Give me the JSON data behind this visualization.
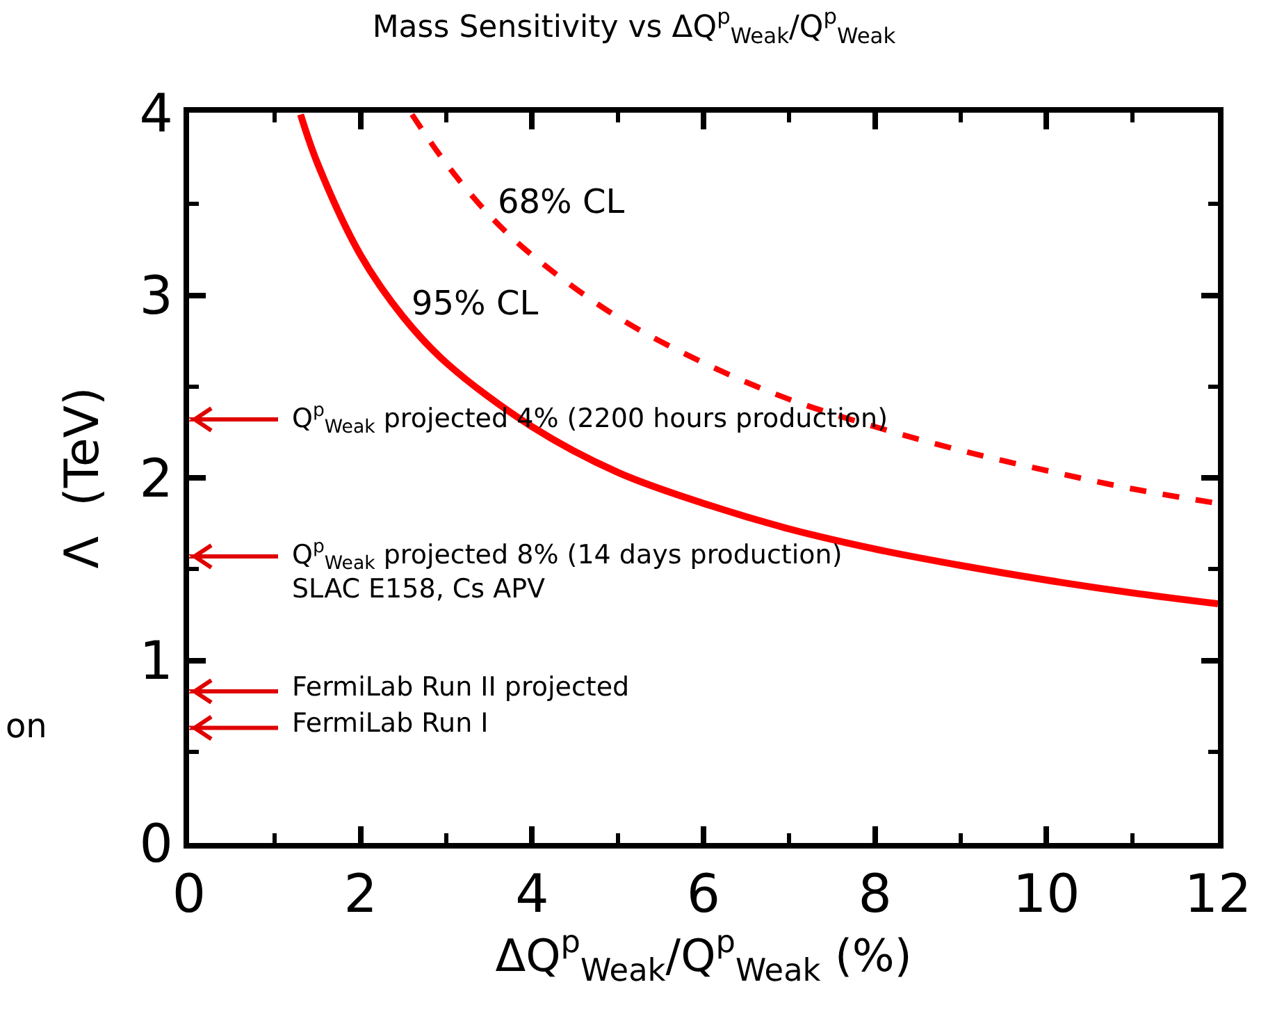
{
  "chart_data": {
    "type": "line",
    "title": "Mass Sensitivity vs ΔQ$^{p}$$_{Weak}$/Q$^{p}$$_{Weak}$",
    "xlabel": "ΔQ$^{p}$$_{Weak}$/Q$^{p}$$_{Weak}$ (%)",
    "ylabel": "Λ  (TeV)",
    "xlim": [
      0,
      12
    ],
    "xticks": [
      0,
      2,
      4,
      6,
      8,
      10,
      12
    ],
    "ylim": [
      0,
      4
    ],
    "yticks": [
      0,
      1,
      2,
      3,
      4
    ],
    "legend": false,
    "series": [
      {
        "name": "95% CL",
        "color": "#ff0000",
        "line_style": "solid",
        "x": [
          1.3,
          1.5,
          2,
          2.5,
          3,
          4,
          5,
          6,
          7,
          8,
          9,
          10,
          11,
          12
        ],
        "values": [
          3.99,
          3.72,
          3.22,
          2.88,
          2.63,
          2.28,
          2.03,
          1.86,
          1.72,
          1.61,
          1.52,
          1.44,
          1.37,
          1.31
        ]
      },
      {
        "name": "68% CL",
        "color": "#ff0000",
        "line_style": "dashed",
        "x": [
          2.6,
          3,
          3.5,
          4,
          5,
          6,
          7,
          8,
          9,
          10,
          11,
          12
        ],
        "values": [
          3.99,
          3.72,
          3.44,
          3.22,
          2.88,
          2.63,
          2.43,
          2.28,
          2.15,
          2.04,
          1.94,
          1.86
        ]
      }
    ],
    "ref_lines": [
      {
        "axis": "y",
        "value": 2.32,
        "label": "Q$^{p}$$_{Weak}$ projected 4% (2200 hours production)",
        "color": "#e00000"
      },
      {
        "axis": "y",
        "value": 1.57,
        "label": "Q$^{p}$$_{Weak}$ projected 8% (14 days production)\nSLAC E158, Cs APV",
        "color": "#e00000"
      },
      {
        "axis": "y",
        "value": 0.83,
        "label": "FermiLab Run II projected",
        "color": "#e00000"
      },
      {
        "axis": "y",
        "value": 0.63,
        "label": "FermiLab Run I",
        "color": "#e00000"
      }
    ],
    "annotations": [
      "on"
    ]
  }
}
